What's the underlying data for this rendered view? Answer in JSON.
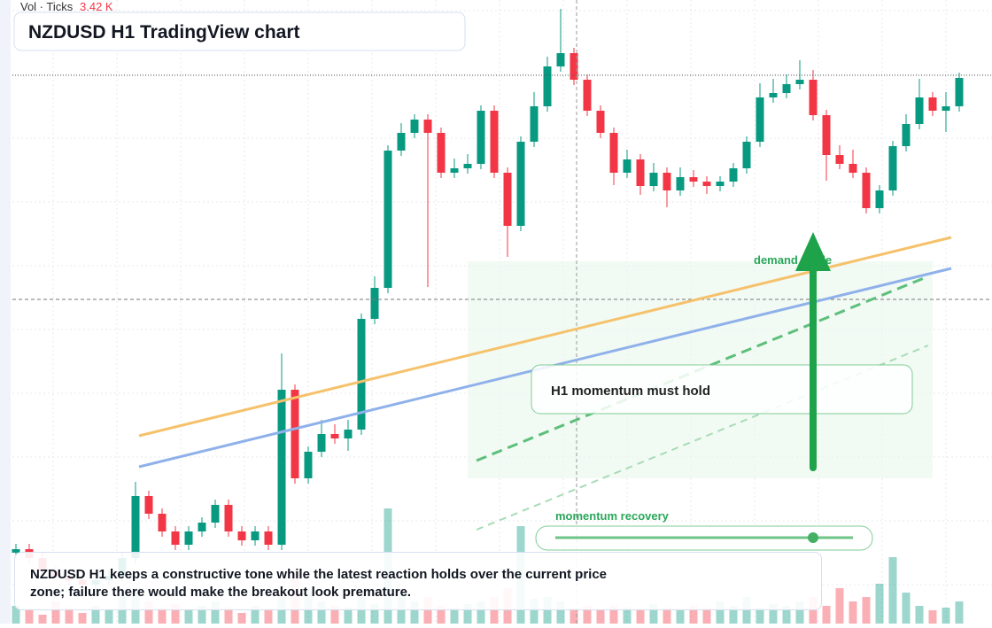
{
  "chart_data": {
    "type": "candlestick",
    "title": "NZDUSD H1 TradingView chart",
    "volume_label": "Vol · Ticks",
    "volume_value": "3.42 K",
    "zone_label": "demand guide",
    "box_label": "H1 momentum must hold",
    "slider_label": "momentum recovery",
    "note": "NZDUSD H1 keeps a constructive tone while the latest reaction holds over the current price zone; failure there would make the breakout look premature.",
    "up_color": "#089981",
    "down_color": "#f23645",
    "ylim": [
      0,
      704
    ],
    "candles": [
      [
        80,
        90,
        74,
        84
      ],
      [
        84,
        90,
        68,
        74
      ],
      [
        74,
        80,
        53,
        59
      ],
      [
        59,
        65,
        48,
        54
      ],
      [
        54,
        60,
        43,
        49
      ],
      [
        49,
        55,
        38,
        44
      ],
      [
        44,
        55,
        38,
        49
      ],
      [
        49,
        60,
        43,
        54
      ],
      [
        54,
        80,
        48,
        74
      ],
      [
        74,
        160,
        68,
        144
      ],
      [
        144,
        150,
        118,
        124
      ],
      [
        124,
        130,
        98,
        104
      ],
      [
        104,
        110,
        83,
        89
      ],
      [
        89,
        110,
        83,
        104
      ],
      [
        104,
        120,
        98,
        114
      ],
      [
        114,
        140,
        108,
        134
      ],
      [
        134,
        140,
        98,
        104
      ],
      [
        104,
        110,
        88,
        94
      ],
      [
        94,
        110,
        88,
        104
      ],
      [
        104,
        110,
        83,
        89
      ],
      [
        89,
        305,
        83,
        264
      ],
      [
        264,
        270,
        158,
        164
      ],
      [
        164,
        200,
        158,
        194
      ],
      [
        194,
        230,
        188,
        214
      ],
      [
        214,
        225,
        203,
        209
      ],
      [
        209,
        230,
        195,
        219
      ],
      [
        219,
        350,
        213,
        344
      ],
      [
        344,
        392,
        338,
        379
      ],
      [
        379,
        540,
        373,
        534
      ],
      [
        534,
        565,
        528,
        554
      ],
      [
        554,
        575,
        548,
        569
      ],
      [
        569,
        575,
        380,
        554
      ],
      [
        554,
        560,
        503,
        509
      ],
      [
        509,
        525,
        503,
        514
      ],
      [
        514,
        530,
        508,
        519
      ],
      [
        519,
        585,
        513,
        579
      ],
      [
        579,
        585,
        503,
        509
      ],
      [
        509,
        515,
        414,
        449
      ],
      [
        449,
        550,
        443,
        544
      ],
      [
        544,
        600,
        538,
        584
      ],
      [
        584,
        640,
        578,
        629
      ],
      [
        629,
        694,
        623,
        644
      ],
      [
        644,
        650,
        608,
        614
      ],
      [
        614,
        620,
        573,
        579
      ],
      [
        579,
        585,
        548,
        554
      ],
      [
        554,
        560,
        495,
        509
      ],
      [
        509,
        535,
        503,
        524
      ],
      [
        524,
        530,
        484,
        494
      ],
      [
        494,
        520,
        488,
        509
      ],
      [
        509,
        515,
        470,
        489
      ],
      [
        489,
        515,
        483,
        504
      ],
      [
        504,
        512,
        493,
        499
      ],
      [
        499,
        505,
        485,
        494
      ],
      [
        494,
        505,
        488,
        499
      ],
      [
        499,
        520,
        493,
        514
      ],
      [
        514,
        550,
        508,
        544
      ],
      [
        544,
        610,
        538,
        594
      ],
      [
        594,
        615,
        588,
        599
      ],
      [
        599,
        620,
        593,
        609
      ],
      [
        609,
        636,
        603,
        614
      ],
      [
        614,
        625,
        568,
        574
      ],
      [
        574,
        580,
        500,
        529
      ],
      [
        529,
        540,
        513,
        519
      ],
      [
        519,
        535,
        503,
        509
      ],
      [
        509,
        515,
        463,
        469
      ],
      [
        469,
        495,
        463,
        489
      ],
      [
        489,
        545,
        483,
        539
      ],
      [
        539,
        575,
        533,
        564
      ],
      [
        564,
        615,
        558,
        594
      ],
      [
        594,
        600,
        573,
        579
      ],
      [
        579,
        600,
        555,
        584
      ],
      [
        584,
        622,
        578,
        616
      ]
    ],
    "volumes": [
      20,
      15,
      10,
      25,
      18,
      12,
      20,
      15,
      30,
      40,
      25,
      18,
      22,
      15,
      20,
      25,
      18,
      12,
      20,
      15,
      30,
      60,
      35,
      25,
      20,
      18,
      30,
      22,
      130,
      35,
      25,
      30,
      20,
      18,
      22,
      25,
      30,
      40,
      110,
      28,
      30,
      25,
      18,
      20,
      15,
      20,
      18,
      15,
      22,
      18,
      15,
      20,
      18,
      25,
      20,
      30,
      18,
      22,
      20,
      25,
      30,
      20,
      40,
      25,
      30,
      45,
      75,
      35,
      20,
      15,
      18,
      25
    ]
  }
}
